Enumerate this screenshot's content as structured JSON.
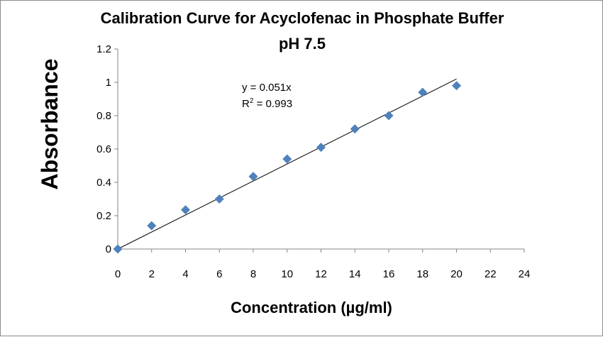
{
  "chart_data": {
    "type": "scatter",
    "title_line1": "Calibration Curve for Acyclofenac in Phosphate Buffer",
    "title_line2": "pH 7.5",
    "xlabel": "Concentration (µg/ml)",
    "ylabel": "Absorbance",
    "xlim": [
      0,
      24
    ],
    "ylim": [
      0,
      1.2
    ],
    "xticks": [
      "0",
      "2",
      "4",
      "6",
      "8",
      "10",
      "12",
      "14",
      "16",
      "18",
      "20",
      "22",
      "24"
    ],
    "yticks": [
      "0",
      "0.2",
      "0.4",
      "0.6",
      "0.8",
      "1",
      "1.2"
    ],
    "grid": false,
    "legend": "none",
    "series": [
      {
        "x": [
          0,
          2,
          4,
          6,
          8,
          10,
          12,
          14,
          16,
          18,
          20
        ],
        "y": [
          0,
          0.14,
          0.235,
          0.3,
          0.435,
          0.54,
          0.61,
          0.72,
          0.8,
          0.94,
          0.98
        ],
        "color": "#4f81bd",
        "marker": "diamond"
      }
    ],
    "trendline": {
      "slope": 0.051,
      "x_range": [
        0,
        20
      ],
      "color": "#000000"
    },
    "annotations": {
      "equation": "y = 0.051x",
      "r_squared_prefix": "R",
      "r_squared_sup": "2",
      "r_squared_value": " = 0.993"
    }
  }
}
